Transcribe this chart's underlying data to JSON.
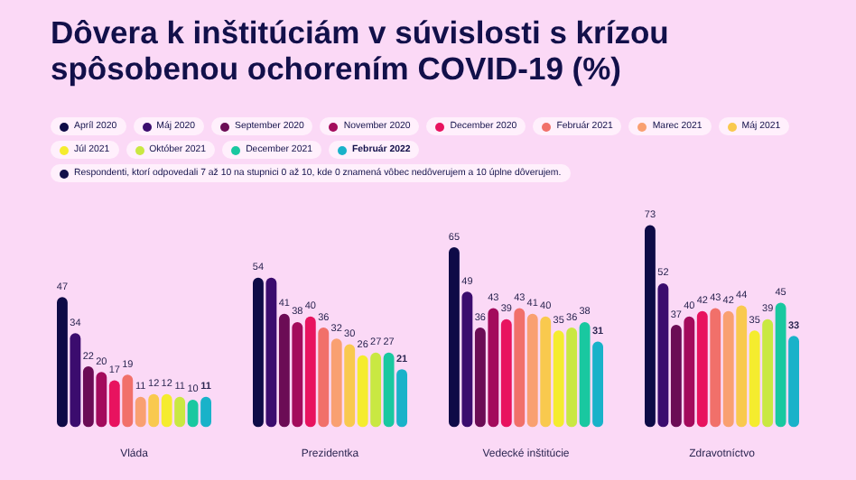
{
  "chart_data": {
    "type": "bar",
    "title": "Dôvera k inštitúciám v súvislosti s krízou spôsobenou ochorením COVID-19 (%)",
    "categories": [
      "Vláda",
      "Prezidentka",
      "Vedecké inštitúcie",
      "Zdravotníctvo"
    ],
    "legend": "top",
    "grid": false,
    "tick_labels": "x",
    "annotations": [
      "Respondenti, ktorí odpovedali 7 až 10 na stupnici 0 až 10, kde 0 znamená vôbec nedôverujem a 10 úplne dôverujem."
    ],
    "series": [
      {
        "name": "Apríl 2020",
        "color": "#0e0b47",
        "values": [
          47,
          54,
          65,
          73
        ],
        "value_labels": [
          "47",
          "54",
          "65",
          "73"
        ]
      },
      {
        "name": "Máj 2020",
        "color": "#3b0c6e",
        "values": [
          34,
          54,
          49,
          52
        ],
        "value_labels": [
          "34",
          null,
          "49",
          "52"
        ]
      },
      {
        "name": "September 2020",
        "color": "#6b0c55",
        "values": [
          22,
          41,
          36,
          37
        ],
        "value_labels": [
          "22",
          "41",
          "36",
          "37"
        ]
      },
      {
        "name": "November 2020",
        "color": "#a30b5c",
        "values": [
          20,
          38,
          43,
          40
        ],
        "value_labels": [
          "20",
          "38",
          "43",
          "40"
        ]
      },
      {
        "name": "December 2020",
        "color": "#e8135f",
        "values": [
          17,
          40,
          39,
          42
        ],
        "value_labels": [
          "17",
          "40",
          "39",
          "42"
        ]
      },
      {
        "name": "Február 2021",
        "color": "#f1706a",
        "values": [
          19,
          36,
          43,
          43
        ],
        "value_labels": [
          "19",
          "36",
          "43",
          "43"
        ]
      },
      {
        "name": "Marec 2021",
        "color": "#f9a071",
        "values": [
          11,
          32,
          41,
          42
        ],
        "value_labels": [
          "11",
          "32",
          "41",
          "42"
        ]
      },
      {
        "name": "Máj 2021",
        "color": "#f9c94e",
        "values": [
          12,
          30,
          40,
          44
        ],
        "value_labels": [
          "12",
          "30",
          "40",
          "44"
        ]
      },
      {
        "name": "Júl 2021",
        "color": "#f5ec2e",
        "values": [
          12,
          26,
          35,
          35
        ],
        "value_labels": [
          "12",
          "26",
          "35",
          "35"
        ]
      },
      {
        "name": "Október 2021",
        "color": "#c9e842",
        "values": [
          11,
          27,
          36,
          39
        ],
        "value_labels": [
          "11",
          "27",
          "36",
          "39"
        ]
      },
      {
        "name": "December 2021",
        "color": "#19c8a0",
        "values": [
          10,
          27,
          38,
          45
        ],
        "value_labels": [
          "10",
          "27",
          "38",
          "45"
        ]
      },
      {
        "name": "Február 2022",
        "color": "#19b2c9",
        "values": [
          11,
          21,
          31,
          33
        ],
        "value_labels": [
          "11",
          "21",
          "31",
          "33"
        ]
      }
    ]
  }
}
